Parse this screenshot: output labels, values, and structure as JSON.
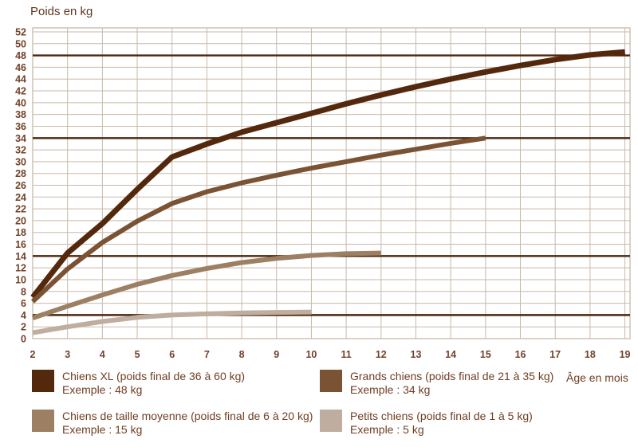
{
  "chart_data": {
    "type": "line",
    "xlabel": "Âge en mois",
    "ylabel": "Poids en kg",
    "xlim": [
      2,
      19
    ],
    "ylim": [
      0,
      52
    ],
    "xtick_step": 1,
    "ytick_step": 2,
    "grid": true,
    "legend_position": "bottom",
    "reference_lines": [
      48,
      34,
      14,
      4
    ],
    "colors": {
      "grid": "#C8B9A9",
      "reference": "#4E250C"
    },
    "series": [
      {
        "name": "Chiens XL",
        "color": "#54280D",
        "points": [
          [
            2,
            7
          ],
          [
            3,
            14.5
          ],
          [
            4,
            19.5
          ],
          [
            5,
            25.3
          ],
          [
            6,
            30.8
          ],
          [
            7,
            33
          ],
          [
            8,
            35
          ],
          [
            9,
            36.6
          ],
          [
            10,
            38.2
          ],
          [
            11,
            39.8
          ],
          [
            12,
            41.3
          ],
          [
            13,
            42.7
          ],
          [
            14,
            44
          ],
          [
            15,
            45.2
          ],
          [
            16,
            46.3
          ],
          [
            17,
            47.3
          ],
          [
            18,
            48.1
          ],
          [
            19,
            48.6
          ]
        ]
      },
      {
        "name": "Grands chiens",
        "color": "#7A5234",
        "points": [
          [
            2,
            6.3
          ],
          [
            3,
            11.8
          ],
          [
            4,
            16.3
          ],
          [
            5,
            19.9
          ],
          [
            6,
            22.9
          ],
          [
            7,
            24.9
          ],
          [
            8,
            26.4
          ],
          [
            9,
            27.7
          ],
          [
            10,
            28.9
          ],
          [
            11,
            30
          ],
          [
            12,
            31.1
          ],
          [
            13,
            32.1
          ],
          [
            14,
            33.1
          ],
          [
            15,
            34
          ]
        ]
      },
      {
        "name": "Chiens de taille moyenne",
        "color": "#9D7F64",
        "points": [
          [
            2,
            3.5
          ],
          [
            3,
            5.5
          ],
          [
            4,
            7.4
          ],
          [
            5,
            9.2
          ],
          [
            6,
            10.7
          ],
          [
            7,
            11.9
          ],
          [
            8,
            12.9
          ],
          [
            9,
            13.6
          ],
          [
            10,
            14.1
          ],
          [
            11,
            14.4
          ],
          [
            12,
            14.5
          ]
        ]
      },
      {
        "name": "Petits chiens",
        "color": "#BFAE9F",
        "points": [
          [
            2,
            1
          ],
          [
            3,
            2
          ],
          [
            4,
            2.9
          ],
          [
            5,
            3.6
          ],
          [
            6,
            4
          ],
          [
            7,
            4.2
          ],
          [
            8,
            4.35
          ],
          [
            9,
            4.45
          ],
          [
            10,
            4.5
          ]
        ]
      }
    ]
  },
  "legend": {
    "items": [
      {
        "label": "Chiens XL (poids final de 36 à 60 kg)",
        "example": "Exemple : 48 kg",
        "color": "#54280D"
      },
      {
        "label": "Grands chiens (poids final de 21 à 35 kg)",
        "example": "Exemple : 34 kg",
        "color": "#7A5234"
      },
      {
        "label": "Chiens de taille moyenne (poids final de 6 à 20 kg)",
        "example": "Exemple : 15 kg",
        "color": "#9D7F64"
      },
      {
        "label": "Petits chiens (poids final de 1 à 5 kg)",
        "example": "Exemple : 5 kg",
        "color": "#BFAE9F"
      }
    ]
  }
}
